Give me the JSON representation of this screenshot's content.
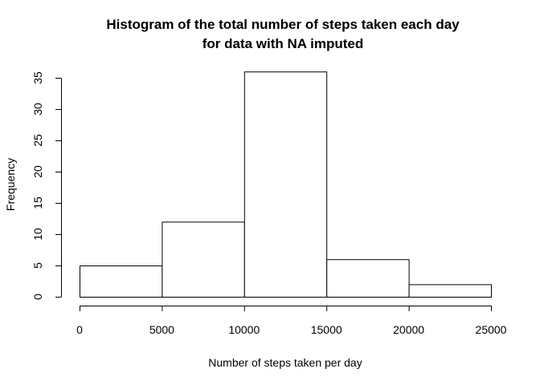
{
  "chart_data": {
    "type": "bar",
    "title_lines": [
      "Histogram of the total number of steps taken each day",
      "for data with NA imputed"
    ],
    "xlabel": "Number of steps taken per day",
    "ylabel": "Frequency",
    "bins": [
      {
        "start": 0,
        "end": 5000,
        "count": 5
      },
      {
        "start": 5000,
        "end": 10000,
        "count": 12
      },
      {
        "start": 10000,
        "end": 15000,
        "count": 36
      },
      {
        "start": 15000,
        "end": 20000,
        "count": 6
      },
      {
        "start": 20000,
        "end": 25000,
        "count": 2
      }
    ],
    "xlim": [
      0,
      25000
    ],
    "ylim": [
      0,
      35
    ],
    "x_ticks": [
      "0",
      "5000",
      "10000",
      "15000",
      "20000",
      "25000"
    ],
    "y_ticks": [
      "0",
      "5",
      "10",
      "15",
      "20",
      "25",
      "30",
      "35"
    ],
    "grid": false,
    "bar_fill": "#ffffff",
    "bar_stroke": "#000000"
  }
}
